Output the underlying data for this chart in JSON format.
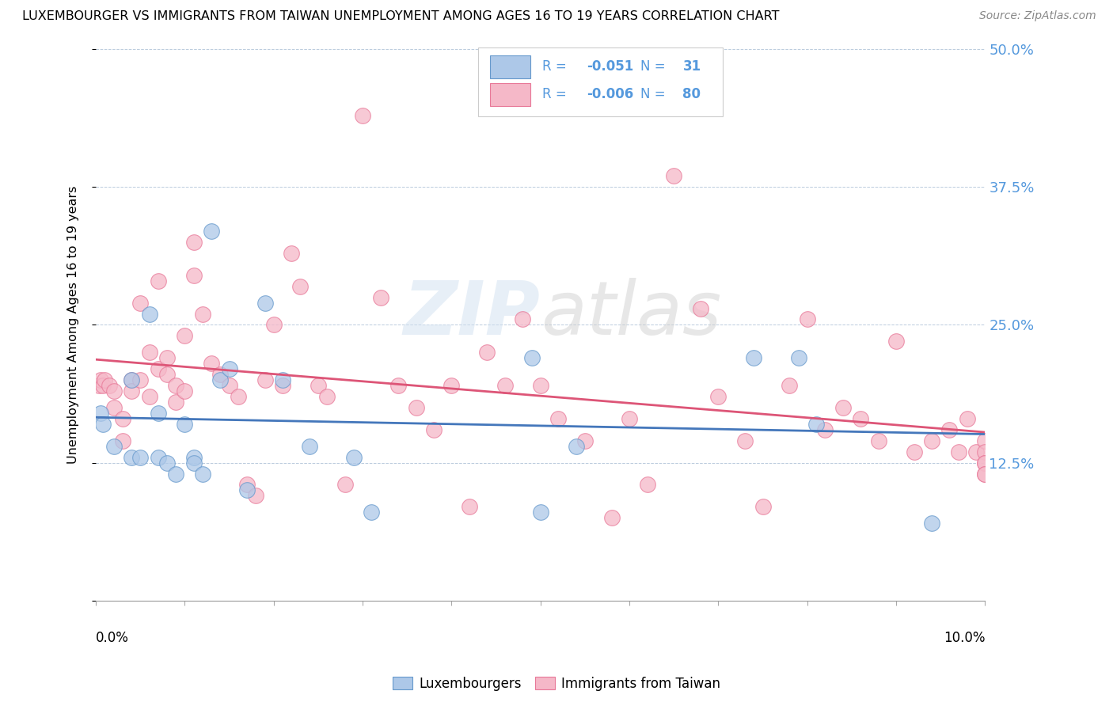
{
  "title": "LUXEMBOURGER VS IMMIGRANTS FROM TAIWAN UNEMPLOYMENT AMONG AGES 16 TO 19 YEARS CORRELATION CHART",
  "source": "Source: ZipAtlas.com",
  "ylabel": "Unemployment Among Ages 16 to 19 years",
  "watermark": "ZIPatlas",
  "legend_blue_r": "-0.051",
  "legend_blue_n": "31",
  "legend_pink_r": "-0.006",
  "legend_pink_n": "80",
  "blue_fill": "#adc8e8",
  "pink_fill": "#f5b8c8",
  "blue_edge": "#6699cc",
  "pink_edge": "#e87898",
  "blue_line": "#4477bb",
  "pink_line": "#dd5577",
  "right_axis_color": "#5599dd",
  "label_color": "#5599dd",
  "yticks": [
    0.0,
    0.125,
    0.25,
    0.375,
    0.5
  ],
  "ytick_labels": [
    "",
    "12.5%",
    "25.0%",
    "37.5%",
    "50.0%"
  ],
  "blue_x": [
    0.0005,
    0.0008,
    0.002,
    0.004,
    0.004,
    0.005,
    0.006,
    0.007,
    0.007,
    0.008,
    0.009,
    0.01,
    0.011,
    0.011,
    0.012,
    0.013,
    0.014,
    0.015,
    0.017,
    0.019,
    0.021,
    0.024,
    0.029,
    0.031,
    0.049,
    0.05,
    0.054,
    0.074,
    0.079,
    0.081,
    0.094
  ],
  "blue_y": [
    0.17,
    0.16,
    0.14,
    0.2,
    0.13,
    0.13,
    0.26,
    0.17,
    0.13,
    0.125,
    0.115,
    0.16,
    0.13,
    0.125,
    0.115,
    0.335,
    0.2,
    0.21,
    0.1,
    0.27,
    0.2,
    0.14,
    0.13,
    0.08,
    0.22,
    0.08,
    0.14,
    0.22,
    0.22,
    0.16,
    0.07
  ],
  "pink_x": [
    0.0003,
    0.0005,
    0.0008,
    0.001,
    0.0015,
    0.002,
    0.002,
    0.003,
    0.003,
    0.004,
    0.004,
    0.005,
    0.005,
    0.006,
    0.006,
    0.007,
    0.007,
    0.008,
    0.008,
    0.009,
    0.009,
    0.01,
    0.01,
    0.011,
    0.011,
    0.012,
    0.013,
    0.014,
    0.015,
    0.016,
    0.017,
    0.018,
    0.019,
    0.02,
    0.021,
    0.022,
    0.023,
    0.025,
    0.026,
    0.028,
    0.03,
    0.032,
    0.034,
    0.036,
    0.038,
    0.04,
    0.042,
    0.044,
    0.046,
    0.048,
    0.05,
    0.052,
    0.055,
    0.058,
    0.06,
    0.062,
    0.065,
    0.068,
    0.07,
    0.073,
    0.075,
    0.078,
    0.08,
    0.082,
    0.084,
    0.086,
    0.088,
    0.09,
    0.092,
    0.094,
    0.096,
    0.097,
    0.098,
    0.099,
    0.1,
    0.1,
    0.1,
    0.1,
    0.1,
    0.1
  ],
  "pink_y": [
    0.195,
    0.2,
    0.195,
    0.2,
    0.195,
    0.19,
    0.175,
    0.165,
    0.145,
    0.2,
    0.19,
    0.27,
    0.2,
    0.225,
    0.185,
    0.29,
    0.21,
    0.22,
    0.205,
    0.195,
    0.18,
    0.24,
    0.19,
    0.325,
    0.295,
    0.26,
    0.215,
    0.205,
    0.195,
    0.185,
    0.105,
    0.095,
    0.2,
    0.25,
    0.195,
    0.315,
    0.285,
    0.195,
    0.185,
    0.105,
    0.44,
    0.275,
    0.195,
    0.175,
    0.155,
    0.195,
    0.085,
    0.225,
    0.195,
    0.255,
    0.195,
    0.165,
    0.145,
    0.075,
    0.165,
    0.105,
    0.385,
    0.265,
    0.185,
    0.145,
    0.085,
    0.195,
    0.255,
    0.155,
    0.175,
    0.165,
    0.145,
    0.235,
    0.135,
    0.145,
    0.155,
    0.135,
    0.165,
    0.135,
    0.145,
    0.135,
    0.125,
    0.125,
    0.115,
    0.115
  ]
}
